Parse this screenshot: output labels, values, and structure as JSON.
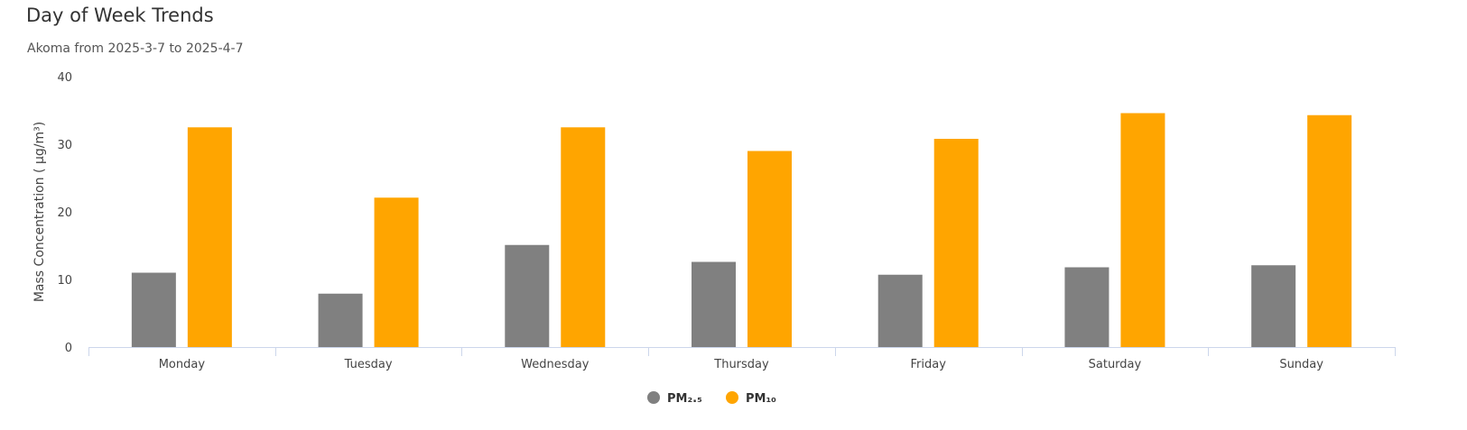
{
  "chart_data": {
    "type": "bar",
    "title": "Day of Week Trends",
    "subtitle": "Akoma from 2025-3-7 to 2025-4-7",
    "ylabel": "Mass Concentration ( µg/m³)",
    "xlabel": "",
    "ylim": [
      0,
      40
    ],
    "yticks": [
      0,
      10,
      20,
      30,
      40
    ],
    "grid": false,
    "legend": "bottom-center",
    "categories": [
      "Monday",
      "Tuesday",
      "Wednesday",
      "Thursday",
      "Friday",
      "Saturday",
      "Sunday"
    ],
    "series": [
      {
        "name": "PM₂.₅",
        "color": "#808080",
        "values": [
          11.0,
          7.9,
          15.1,
          12.6,
          10.7,
          11.8,
          12.1
        ]
      },
      {
        "name": "PM₁₀",
        "color": "#ffa500",
        "values": [
          32.5,
          22.1,
          32.5,
          29.0,
          30.8,
          34.6,
          34.3
        ]
      }
    ]
  }
}
